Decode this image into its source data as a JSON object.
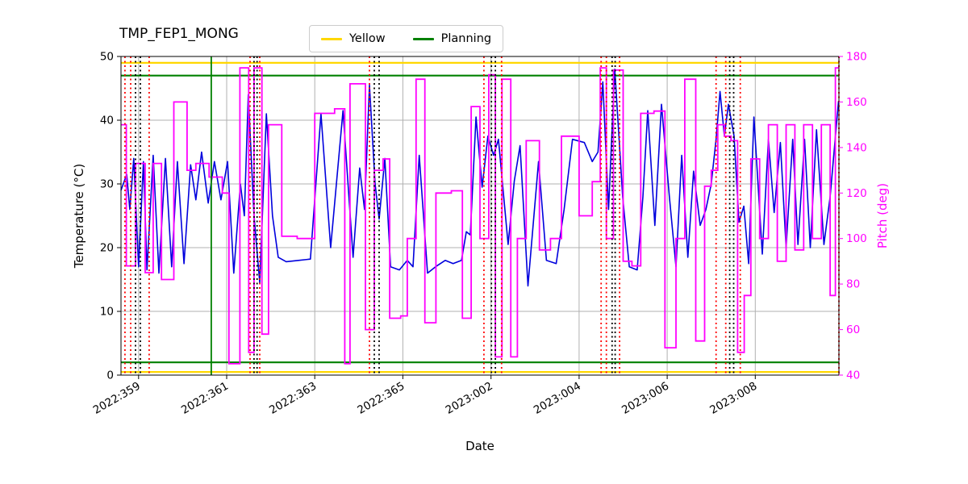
{
  "title": "TMP_FEP1_MONG",
  "legend": {
    "items": [
      {
        "label": "Yellow",
        "color": "#FFD700"
      },
      {
        "label": "Planning",
        "color": "#008000"
      }
    ]
  },
  "chart_data": {
    "type": "line",
    "title": "TMP_FEP1_MONG",
    "xlabel": "Date",
    "ylabel_left": "Temperature (°C)",
    "ylabel_right": "Pitch (deg)",
    "grid": true,
    "grid_color": "#b0b0b0",
    "axes": {
      "x": {
        "range": [
          358.6,
          374.9
        ],
        "ticks": [
          {
            "value": 359,
            "label": "2022:359"
          },
          {
            "value": 361,
            "label": "2022:361"
          },
          {
            "value": 363,
            "label": "2022:363"
          },
          {
            "value": 365,
            "label": "2022:365"
          },
          {
            "value": 367,
            "label": "2023:002"
          },
          {
            "value": 369,
            "label": "2023:004"
          },
          {
            "value": 371,
            "label": "2023:006"
          },
          {
            "value": 373,
            "label": "2023:008"
          }
        ]
      },
      "y_left": {
        "range": [
          0,
          50
        ],
        "ticks": [
          0,
          10,
          20,
          30,
          40,
          50
        ],
        "color": "#000000"
      },
      "y_right": {
        "range": [
          40,
          180
        ],
        "ticks": [
          40,
          60,
          80,
          100,
          120,
          140,
          160,
          180
        ],
        "color": "#FF00FF"
      }
    },
    "series": [
      {
        "name": "temperature",
        "axis": "left",
        "color": "#0000DD",
        "style": "solid",
        "points": [
          [
            358.6,
            29
          ],
          [
            358.73,
            31.5
          ],
          [
            358.8,
            26
          ],
          [
            358.89,
            34
          ],
          [
            359.0,
            17
          ],
          [
            359.11,
            33.5
          ],
          [
            359.19,
            16.5
          ],
          [
            359.33,
            34.5
          ],
          [
            359.46,
            16
          ],
          [
            359.61,
            34
          ],
          [
            359.75,
            17
          ],
          [
            359.88,
            33.5
          ],
          [
            360.03,
            17.5
          ],
          [
            360.18,
            33
          ],
          [
            360.3,
            27.5
          ],
          [
            360.43,
            35
          ],
          [
            360.58,
            27
          ],
          [
            360.72,
            33.5
          ],
          [
            360.87,
            27.5
          ],
          [
            361.02,
            33.5
          ],
          [
            361.16,
            16
          ],
          [
            361.31,
            30
          ],
          [
            361.4,
            25
          ],
          [
            361.49,
            44
          ],
          [
            361.62,
            25
          ],
          [
            361.75,
            14.5
          ],
          [
            361.9,
            41
          ],
          [
            362.04,
            25
          ],
          [
            362.17,
            18.5
          ],
          [
            362.35,
            17.8
          ],
          [
            362.63,
            18
          ],
          [
            362.9,
            18.2
          ],
          [
            363.14,
            41
          ],
          [
            363.36,
            20
          ],
          [
            363.64,
            41.5
          ],
          [
            363.87,
            18.5
          ],
          [
            364.02,
            32.5
          ],
          [
            364.13,
            26
          ],
          [
            364.24,
            45.5
          ],
          [
            364.37,
            30
          ],
          [
            364.46,
            24.5
          ],
          [
            364.59,
            34
          ],
          [
            364.72,
            17
          ],
          [
            364.92,
            16.5
          ],
          [
            365.1,
            18
          ],
          [
            365.23,
            17
          ],
          [
            365.37,
            34.5
          ],
          [
            365.56,
            16
          ],
          [
            365.74,
            17
          ],
          [
            365.96,
            18
          ],
          [
            366.14,
            17.5
          ],
          [
            366.33,
            18
          ],
          [
            366.44,
            22.5
          ],
          [
            366.53,
            22
          ],
          [
            366.66,
            40.5
          ],
          [
            366.8,
            29.5
          ],
          [
            366.93,
            37.5
          ],
          [
            367.06,
            34.5
          ],
          [
            367.17,
            37
          ],
          [
            367.39,
            20.5
          ],
          [
            367.53,
            30.5
          ],
          [
            367.66,
            36
          ],
          [
            367.84,
            14
          ],
          [
            368.08,
            33.5
          ],
          [
            368.26,
            18
          ],
          [
            368.48,
            17.5
          ],
          [
            368.66,
            26
          ],
          [
            368.85,
            37
          ],
          [
            369.12,
            36.5
          ],
          [
            369.3,
            33.5
          ],
          [
            369.43,
            35
          ],
          [
            369.54,
            46
          ],
          [
            369.67,
            26
          ],
          [
            369.81,
            48
          ],
          [
            369.99,
            28
          ],
          [
            370.14,
            17
          ],
          [
            370.32,
            16.5
          ],
          [
            370.45,
            28
          ],
          [
            370.56,
            41.5
          ],
          [
            370.72,
            23.5
          ],
          [
            370.87,
            42.5
          ],
          [
            371.05,
            28
          ],
          [
            371.2,
            17
          ],
          [
            371.33,
            34.5
          ],
          [
            371.47,
            18.5
          ],
          [
            371.6,
            32
          ],
          [
            371.75,
            23.5
          ],
          [
            371.88,
            26
          ],
          [
            372.0,
            30
          ],
          [
            372.11,
            37
          ],
          [
            372.2,
            44.5
          ],
          [
            372.3,
            37.5
          ],
          [
            372.39,
            42.5
          ],
          [
            372.52,
            37.5
          ],
          [
            372.63,
            24
          ],
          [
            372.74,
            26.5
          ],
          [
            372.85,
            17.5
          ],
          [
            372.97,
            40.5
          ],
          [
            373.16,
            19
          ],
          [
            373.3,
            37
          ],
          [
            373.43,
            25.5
          ],
          [
            373.57,
            36.5
          ],
          [
            373.7,
            20
          ],
          [
            373.85,
            37
          ],
          [
            373.97,
            20.5
          ],
          [
            374.12,
            37
          ],
          [
            374.25,
            20
          ],
          [
            374.39,
            38.5
          ],
          [
            374.56,
            20.5
          ],
          [
            374.7,
            28
          ],
          [
            374.89,
            43
          ]
        ]
      },
      {
        "name": "pitch",
        "axis": "right",
        "color": "#FF00FF",
        "style": "step",
        "points": [
          [
            358.6,
            150
          ],
          [
            358.72,
            88
          ],
          [
            358.93,
            133
          ],
          [
            359.15,
            85
          ],
          [
            359.33,
            133
          ],
          [
            359.52,
            82
          ],
          [
            359.8,
            160
          ],
          [
            360.1,
            130
          ],
          [
            360.3,
            133
          ],
          [
            360.6,
            127
          ],
          [
            360.9,
            120
          ],
          [
            361.05,
            45
          ],
          [
            361.3,
            175
          ],
          [
            361.5,
            50
          ],
          [
            361.62,
            175
          ],
          [
            361.8,
            58
          ],
          [
            361.95,
            150
          ],
          [
            362.25,
            101
          ],
          [
            362.6,
            100
          ],
          [
            363.0,
            155
          ],
          [
            363.45,
            157
          ],
          [
            363.68,
            45
          ],
          [
            363.8,
            168
          ],
          [
            364.15,
            60
          ],
          [
            364.35,
            130
          ],
          [
            364.55,
            135
          ],
          [
            364.7,
            65
          ],
          [
            364.95,
            66
          ],
          [
            365.1,
            100
          ],
          [
            365.3,
            170
          ],
          [
            365.5,
            63
          ],
          [
            365.75,
            120
          ],
          [
            366.1,
            121
          ],
          [
            366.35,
            65
          ],
          [
            366.55,
            158
          ],
          [
            366.75,
            100
          ],
          [
            366.95,
            172
          ],
          [
            367.1,
            48
          ],
          [
            367.25,
            170
          ],
          [
            367.45,
            48
          ],
          [
            367.6,
            100
          ],
          [
            367.8,
            143
          ],
          [
            368.1,
            95
          ],
          [
            368.35,
            100
          ],
          [
            368.6,
            145
          ],
          [
            369.0,
            110
          ],
          [
            369.3,
            125
          ],
          [
            369.48,
            175
          ],
          [
            369.62,
            100
          ],
          [
            369.78,
            174
          ],
          [
            370.0,
            90
          ],
          [
            370.2,
            88
          ],
          [
            370.4,
            155
          ],
          [
            370.7,
            156
          ],
          [
            370.95,
            52
          ],
          [
            371.2,
            100
          ],
          [
            371.4,
            170
          ],
          [
            371.65,
            55
          ],
          [
            371.85,
            123
          ],
          [
            372.0,
            130
          ],
          [
            372.15,
            150
          ],
          [
            372.3,
            145
          ],
          [
            372.45,
            143
          ],
          [
            372.6,
            50
          ],
          [
            372.75,
            75
          ],
          [
            372.9,
            135
          ],
          [
            373.1,
            100
          ],
          [
            373.3,
            150
          ],
          [
            373.5,
            90
          ],
          [
            373.7,
            150
          ],
          [
            373.9,
            95
          ],
          [
            374.1,
            150
          ],
          [
            374.3,
            100
          ],
          [
            374.5,
            150
          ],
          [
            374.7,
            75
          ],
          [
            374.82,
            175
          ]
        ]
      }
    ],
    "limit_lines": [
      {
        "name": "yellow-high",
        "y": 49,
        "color": "#FFD700"
      },
      {
        "name": "yellow-low",
        "y": 0.5,
        "color": "#FFD700"
      },
      {
        "name": "planning-high",
        "y": 47,
        "color": "#008000"
      },
      {
        "name": "planning-low",
        "y": 2,
        "color": "#008000"
      }
    ],
    "event_lines": [
      {
        "name": "green-solid-vline",
        "color": "#008000",
        "style": "solid",
        "x": [
          360.65
        ]
      },
      {
        "name": "red-dotted-vlines",
        "color": "#FF0000",
        "style": "dotted",
        "x": [
          358.69,
          358.82,
          359.24,
          361.53,
          361.75,
          364.24,
          366.84,
          367.24,
          369.5,
          369.62,
          369.92,
          372.11,
          372.33,
          372.66,
          374.9
        ]
      },
      {
        "name": "black-dotted-vlines",
        "color": "#000000",
        "style": "dotted",
        "x": [
          358.93,
          359.04,
          361.62,
          361.69,
          364.35,
          364.46,
          367.01,
          367.1,
          369.75,
          369.82,
          372.42,
          372.51
        ]
      }
    ]
  }
}
